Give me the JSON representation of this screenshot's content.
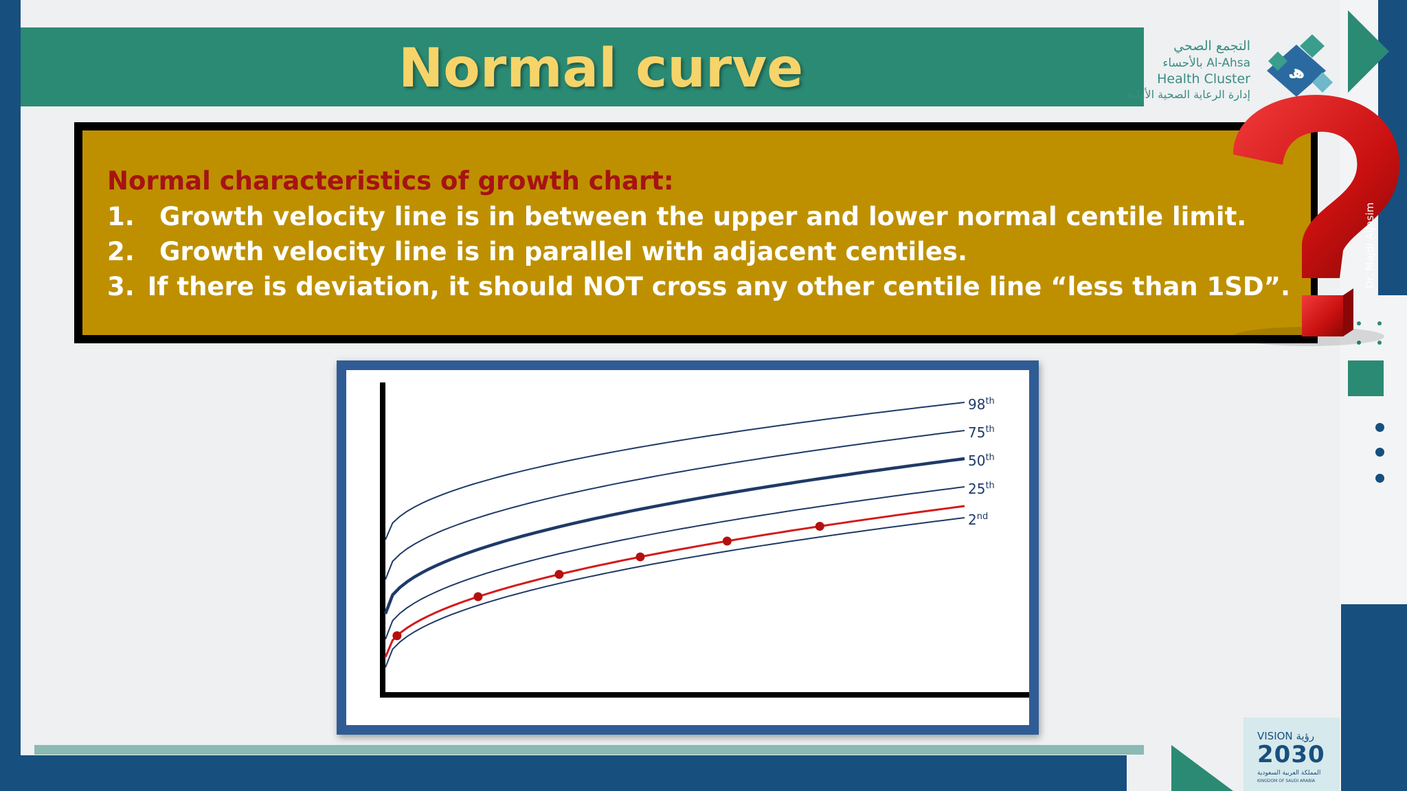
{
  "slide": {
    "title": "Normal curve",
    "credit": "Dr. Majdi AlJasim"
  },
  "logo": {
    "line1": "التجمع الصحي",
    "line2": "بالأحساء Al-Ahsa",
    "line3": "Health Cluster",
    "line4": "إدارة الرعاية الصحية الأولية",
    "icon": "ahsa-health-cluster-logo"
  },
  "vision_badge": {
    "label_top": "VISION رؤية",
    "label_year": "2030",
    "label_sub": "المملكة العربية السعودية",
    "label_country": "KINGDOM OF SAUDI ARABIA"
  },
  "info": {
    "heading": "Normal characteristics of growth chart:",
    "items": [
      {
        "num": "1.",
        "text": "Growth velocity line is in between the upper and lower normal centile limit."
      },
      {
        "num": "2.",
        "text": "Growth velocity line is in parallel with adjacent centiles."
      },
      {
        "num": "3.",
        "text": "If there is deviation, it should NOT cross any other centile line “less than 1SD”."
      }
    ]
  },
  "decor": {
    "question_icon": "red-question-mark-icon"
  },
  "colors": {
    "teal": "#2b8a73",
    "navy": "#174f7e",
    "gold": "#be9000",
    "title_yellow": "#f6d46a",
    "heading_red": "#a51313",
    "centile_line": "#1f3a68",
    "patient_line": "#d51a1a"
  },
  "chart_data": {
    "type": "line",
    "title": "",
    "xlabel": "",
    "ylabel": "",
    "centiles": [
      {
        "base": "98",
        "sup": "th",
        "bold": false
      },
      {
        "base": "75",
        "sup": "th",
        "bold": false
      },
      {
        "base": "50",
        "sup": "th",
        "bold": true
      },
      {
        "base": "25",
        "sup": "th",
        "bold": false
      },
      {
        "base": "2",
        "sup": "nd",
        "bold": false
      }
    ],
    "patient_points_count": 6
  }
}
